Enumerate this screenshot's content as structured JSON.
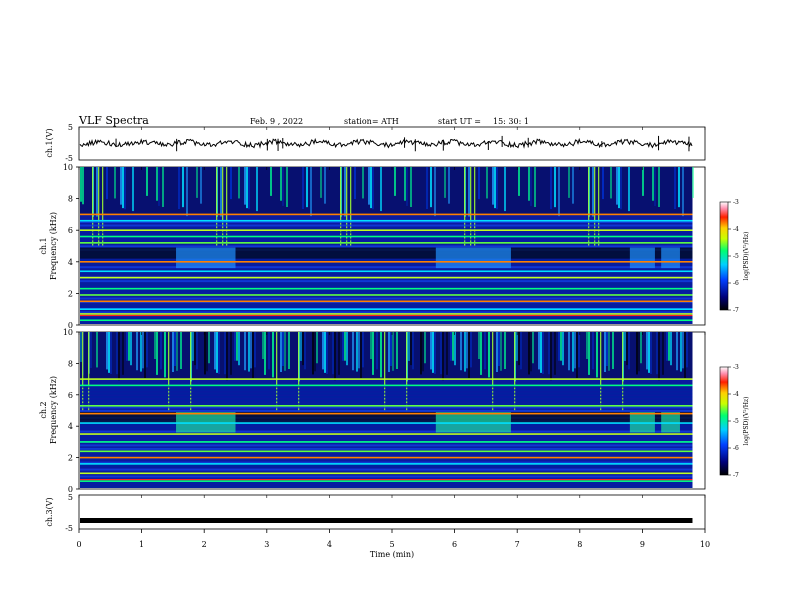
{
  "header": {
    "title": "VLF  Spectra",
    "date": "Feb. 9  , 2022",
    "station": "station= ATH",
    "start_label": "start  UT  =",
    "start_time": "15: 30: 1"
  },
  "chart_data": [
    {
      "type": "line",
      "panel": "ch1-waveform",
      "ylabel": "ch.1(V)",
      "ylim": [
        -5,
        5
      ],
      "yticks": [
        "5",
        "-5"
      ],
      "xlim": [
        0,
        10
      ],
      "x_end": 9.8,
      "baseline": 0,
      "color": "#000000"
    },
    {
      "type": "heatmap",
      "panel": "ch1-spectrogram",
      "ylabel": "ch.1\nFrequency (kHz)",
      "ylim": [
        0,
        10
      ],
      "yticks": [
        "0",
        "2",
        "4",
        "6",
        "8",
        "10"
      ],
      "xlim": [
        0,
        10
      ],
      "x_end": 9.8,
      "colorbar": {
        "label": "log(PSD)(V²/Hz)",
        "range": [
          -7,
          -3
        ],
        "ticks": [
          "-3",
          "-4",
          "-5",
          "-6",
          "-7"
        ]
      },
      "bright_bands_khz": [
        0.3,
        0.7,
        1.0,
        1.5,
        1.9,
        2.3,
        3.0,
        3.4,
        4.0,
        5.2,
        5.6,
        6.0,
        6.6,
        7.0
      ]
    },
    {
      "type": "heatmap",
      "panel": "ch2-spectrogram",
      "ylabel": "ch.2\nFrequency (kHz)",
      "ylim": [
        0,
        10
      ],
      "yticks": [
        "0",
        "2",
        "4",
        "6",
        "8",
        "10"
      ],
      "xlim": [
        0,
        10
      ],
      "x_end": 9.8,
      "colorbar": {
        "label": "log(PSD)(V²/Hz)",
        "range": [
          -7,
          -3
        ],
        "ticks": [
          "-3",
          "-4",
          "-5",
          "-6",
          "-7"
        ]
      },
      "bright_bands_khz": [
        0.5,
        1.0,
        1.6,
        2.0,
        2.4,
        3.0,
        3.5,
        4.2,
        4.8,
        5.3,
        6.6,
        7.0
      ]
    },
    {
      "type": "line",
      "panel": "ch3-waveform",
      "ylabel": "ch.3(V)",
      "ylim": [
        -5,
        5
      ],
      "yticks": [
        "5",
        "-5"
      ],
      "xlim": [
        0,
        10
      ],
      "x_end": 9.8,
      "baseline": -2.5,
      "color": "#000000"
    }
  ],
  "xaxis": {
    "label": "Time  (min)",
    "ticks": [
      "0",
      "1",
      "2",
      "3",
      "4",
      "5",
      "6",
      "7",
      "8",
      "9",
      "10"
    ]
  }
}
